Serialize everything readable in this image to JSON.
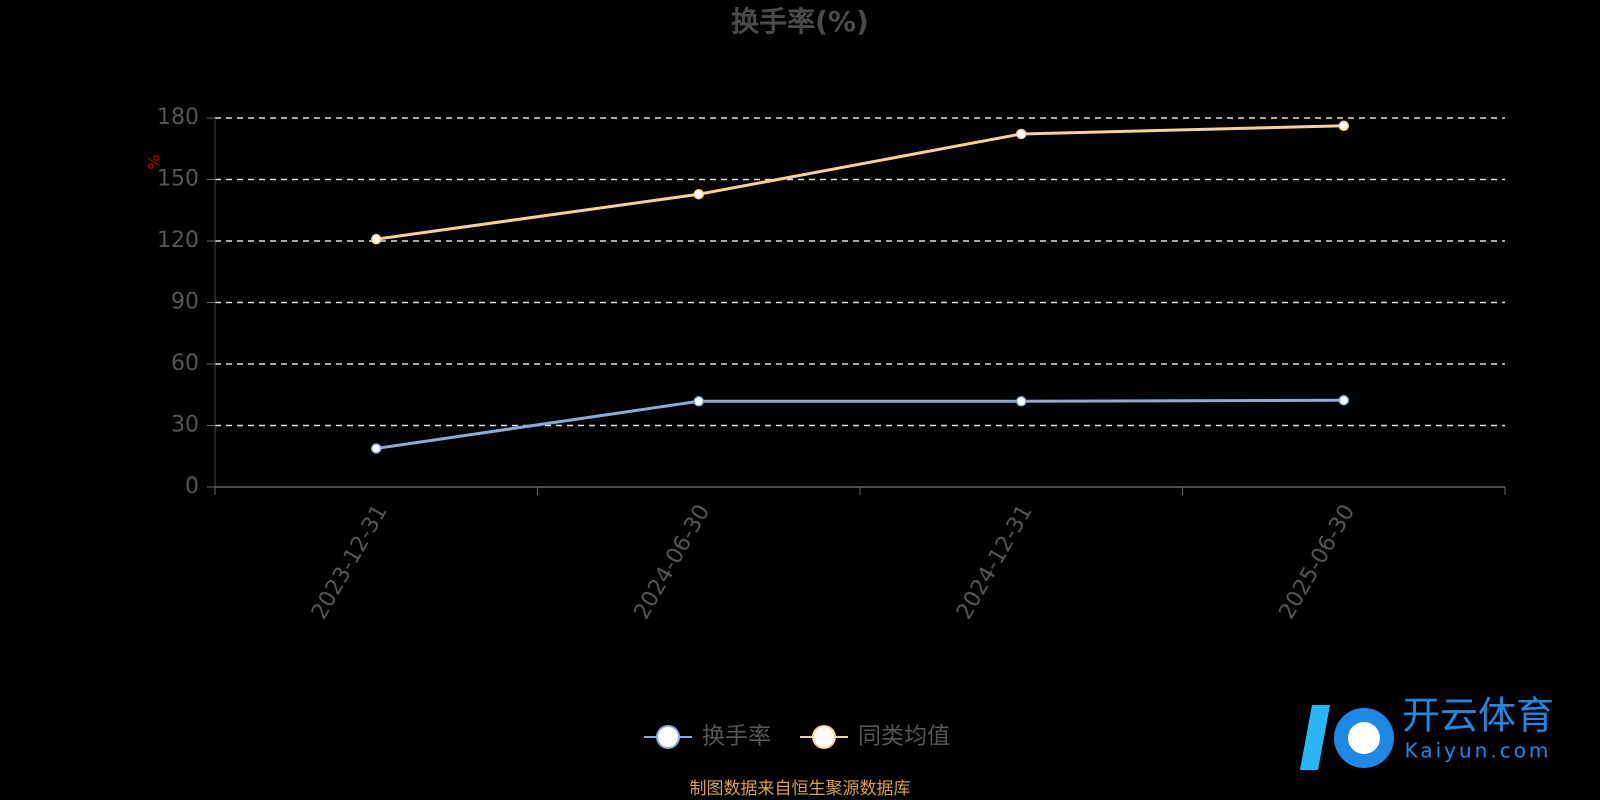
{
  "chart_data": {
    "type": "line",
    "title": "换手率(%)",
    "y_label": "%",
    "categories": [
      "2023-12-31",
      "2024-06-30",
      "2024-12-31",
      "2025-06-30"
    ],
    "series": [
      {
        "name": "换手率",
        "color": "#8fa8d8",
        "values": [
          18.8,
          41.8,
          41.8,
          42.3
        ]
      },
      {
        "name": "同类均值",
        "color": "#f5d38e",
        "values": [
          120.9,
          142.8,
          172.2,
          176.2
        ]
      }
    ],
    "ylim": [
      0,
      180
    ],
    "yticks": [
      0,
      30,
      60,
      90,
      120,
      150,
      180
    ],
    "grid": true,
    "legend": "bottom",
    "source": "制图数据来自恒生聚源数据库",
    "watermark": {
      "name": "开云体育",
      "site": "Kaiyun.com"
    }
  }
}
